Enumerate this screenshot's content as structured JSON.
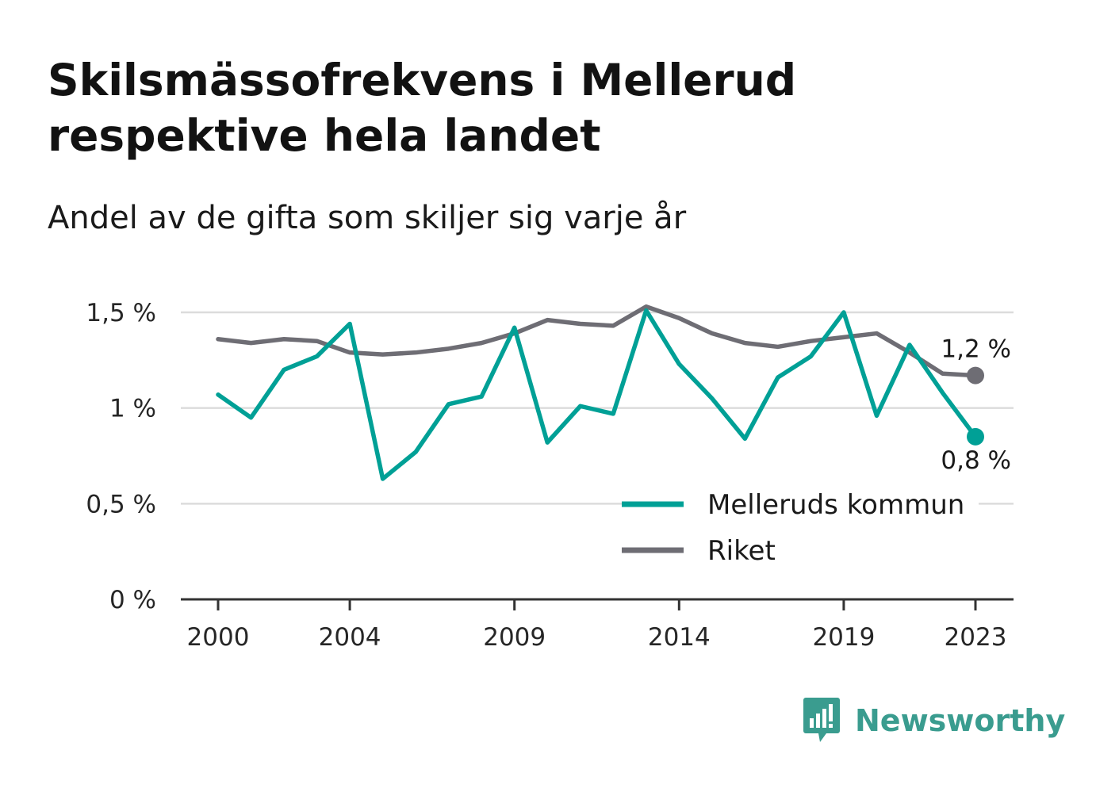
{
  "title": "Skilsmässofrekvens i Mellerud respektive hela landet",
  "subtitle": "Andel av de gifta som skiljer sig varje år",
  "brand": {
    "name": "Newsworthy",
    "color": "#3a9c8f"
  },
  "chart_data": {
    "type": "line",
    "x": [
      2000,
      2001,
      2002,
      2003,
      2004,
      2005,
      2006,
      2007,
      2008,
      2009,
      2010,
      2011,
      2012,
      2013,
      2014,
      2015,
      2016,
      2017,
      2018,
      2019,
      2020,
      2021,
      2022,
      2023
    ],
    "x_tick_labels": [
      "2000",
      "2004",
      "2009",
      "2014",
      "2019",
      "2023"
    ],
    "x_ticks": [
      2000,
      2004,
      2009,
      2014,
      2019,
      2023
    ],
    "y_ticks": [
      0,
      0.5,
      1,
      1.5
    ],
    "y_tick_labels": [
      "0 %",
      "0,5 %",
      "1 %",
      "1,5 %"
    ],
    "ylim": [
      0,
      1.5
    ],
    "grid": true,
    "legend_position": "bottom-right",
    "series": [
      {
        "name": "Melleruds kommun",
        "color": "#00a096",
        "values": [
          1.07,
          0.95,
          1.2,
          1.27,
          1.44,
          0.63,
          0.77,
          1.02,
          1.06,
          1.42,
          0.82,
          1.01,
          0.97,
          1.51,
          1.23,
          1.05,
          0.84,
          1.16,
          1.27,
          1.5,
          0.96,
          1.33,
          1.08,
          0.85
        ],
        "end_label": "0,8 %"
      },
      {
        "name": "Riket",
        "color": "#6e6d74",
        "values": [
          1.36,
          1.34,
          1.36,
          1.35,
          1.29,
          1.28,
          1.29,
          1.31,
          1.34,
          1.39,
          1.46,
          1.44,
          1.43,
          1.53,
          1.47,
          1.39,
          1.34,
          1.32,
          1.35,
          1.37,
          1.39,
          1.29,
          1.18,
          1.17
        ],
        "end_label": "1,2 %"
      }
    ]
  }
}
